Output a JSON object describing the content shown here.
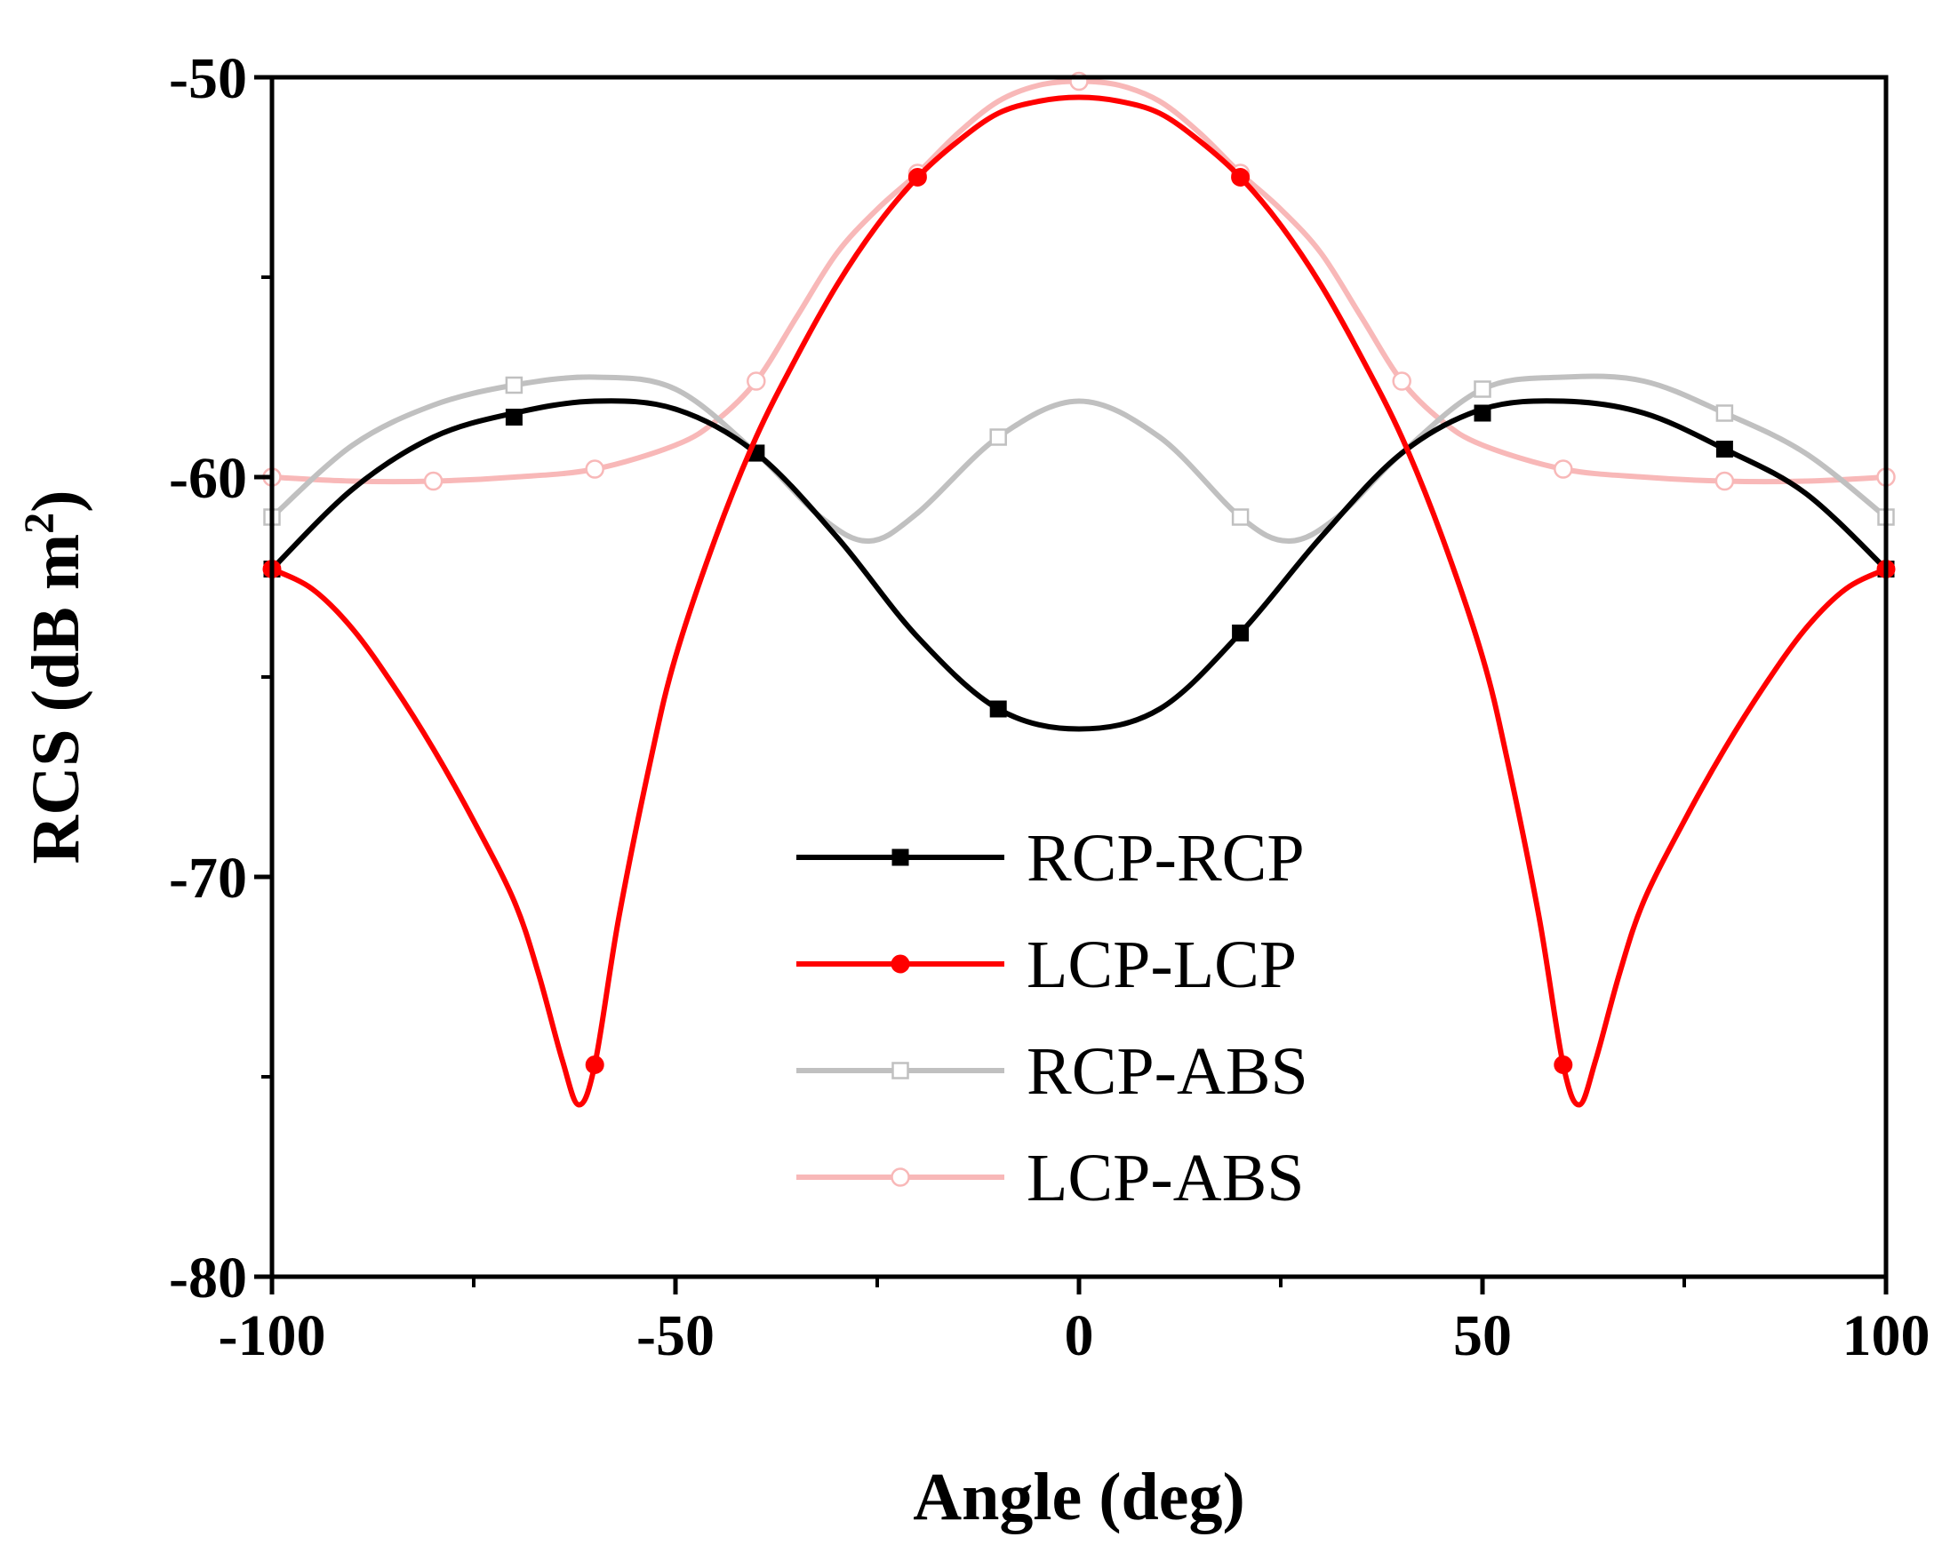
{
  "chart_data": {
    "type": "line",
    "xlabel": "Angle (deg)",
    "ylabel": "RCS (dB m",
    "ylabel_sup": "2",
    "ylabel_close": ")",
    "xlim": [
      -100,
      100
    ],
    "ylim": [
      -80,
      -50
    ],
    "x_ticks": [
      -100,
      -50,
      0,
      50,
      100
    ],
    "y_ticks": [
      -80,
      -70,
      -60,
      -50
    ],
    "x_minor_ticks": [
      -75,
      -25,
      25,
      75
    ],
    "y_minor_ticks": [
      -75,
      -65,
      -55
    ],
    "grid": false,
    "legend_position": "bottom-center",
    "series": [
      {
        "name": "RCP-RCP",
        "color": "#000000",
        "marker": "square-filled",
        "markers": [
          [
            -100,
            -62.3
          ],
          [
            -70,
            -58.5
          ],
          [
            -40,
            -59.4
          ],
          [
            -10,
            -65.8
          ],
          [
            20,
            -63.9
          ],
          [
            50,
            -58.4
          ],
          [
            80,
            -59.3
          ],
          [
            100,
            -62.3
          ]
        ],
        "curve": [
          [
            -100,
            -62.3
          ],
          [
            -90,
            -60.3
          ],
          [
            -80,
            -59.0
          ],
          [
            -70,
            -58.4
          ],
          [
            -60,
            -58.1
          ],
          [
            -50,
            -58.3
          ],
          [
            -40,
            -59.4
          ],
          [
            -30,
            -61.5
          ],
          [
            -20,
            -64.0
          ],
          [
            -10,
            -65.8
          ],
          [
            0,
            -66.3
          ],
          [
            10,
            -65.8
          ],
          [
            20,
            -63.9
          ],
          [
            30,
            -61.5
          ],
          [
            40,
            -59.4
          ],
          [
            50,
            -58.3
          ],
          [
            60,
            -58.1
          ],
          [
            70,
            -58.4
          ],
          [
            80,
            -59.3
          ],
          [
            90,
            -60.4
          ],
          [
            100,
            -62.3
          ]
        ]
      },
      {
        "name": "LCP-LCP",
        "color": "#ff0000",
        "marker": "circle-filled",
        "markers": [
          [
            -100,
            -62.3
          ],
          [
            -60,
            -74.7
          ],
          [
            -20,
            -52.5
          ],
          [
            20,
            -52.5
          ],
          [
            60,
            -74.7
          ],
          [
            100,
            -62.3
          ]
        ],
        "curve": [
          [
            -100,
            -62.3
          ],
          [
            -95,
            -62.8
          ],
          [
            -90,
            -63.8
          ],
          [
            -85,
            -65.2
          ],
          [
            -80,
            -66.8
          ],
          [
            -75,
            -68.6
          ],
          [
            -70,
            -70.6
          ],
          [
            -67,
            -72.4
          ],
          [
            -64,
            -74.6
          ],
          [
            -62,
            -75.7
          ],
          [
            -60,
            -74.7
          ],
          [
            -57,
            -71.0
          ],
          [
            -53,
            -67.0
          ],
          [
            -50,
            -64.5
          ],
          [
            -45,
            -61.5
          ],
          [
            -40,
            -59.0
          ],
          [
            -35,
            -57.0
          ],
          [
            -30,
            -55.2
          ],
          [
            -25,
            -53.7
          ],
          [
            -20,
            -52.5
          ],
          [
            -15,
            -51.6
          ],
          [
            -10,
            -50.9
          ],
          [
            -5,
            -50.6
          ],
          [
            0,
            -50.5
          ],
          [
            5,
            -50.6
          ],
          [
            10,
            -50.9
          ],
          [
            15,
            -51.6
          ],
          [
            20,
            -52.5
          ],
          [
            25,
            -53.7
          ],
          [
            30,
            -55.2
          ],
          [
            35,
            -57.0
          ],
          [
            40,
            -59.0
          ],
          [
            45,
            -61.5
          ],
          [
            50,
            -64.5
          ],
          [
            53,
            -67.0
          ],
          [
            57,
            -71.0
          ],
          [
            60,
            -74.7
          ],
          [
            62,
            -75.7
          ],
          [
            64,
            -74.6
          ],
          [
            67,
            -72.4
          ],
          [
            70,
            -70.6
          ],
          [
            75,
            -68.6
          ],
          [
            80,
            -66.8
          ],
          [
            85,
            -65.2
          ],
          [
            90,
            -63.8
          ],
          [
            95,
            -62.8
          ],
          [
            100,
            -62.3
          ]
        ]
      },
      {
        "name": "RCP-ABS",
        "color": "#c0c0c0",
        "marker": "square-open",
        "markers": [
          [
            -100,
            -61.0
          ],
          [
            -70,
            -57.7
          ],
          [
            -40,
            -59.4
          ],
          [
            -10,
            -59.0
          ],
          [
            20,
            -61.0
          ],
          [
            50,
            -57.8
          ],
          [
            80,
            -58.4
          ],
          [
            100,
            -61.0
          ]
        ],
        "curve": [
          [
            -100,
            -61.0
          ],
          [
            -90,
            -59.2
          ],
          [
            -80,
            -58.2
          ],
          [
            -70,
            -57.7
          ],
          [
            -60,
            -57.5
          ],
          [
            -50,
            -57.8
          ],
          [
            -40,
            -59.4
          ],
          [
            -32,
            -61.0
          ],
          [
            -26,
            -61.6
          ],
          [
            -20,
            -60.9
          ],
          [
            -10,
            -59.0
          ],
          [
            0,
            -58.1
          ],
          [
            10,
            -59.0
          ],
          [
            20,
            -61.0
          ],
          [
            26,
            -61.6
          ],
          [
            32,
            -61.0
          ],
          [
            40,
            -59.4
          ],
          [
            50,
            -57.8
          ],
          [
            60,
            -57.5
          ],
          [
            70,
            -57.6
          ],
          [
            80,
            -58.4
          ],
          [
            90,
            -59.4
          ],
          [
            100,
            -61.0
          ]
        ]
      },
      {
        "name": "LCP-ABS",
        "color": "#f8b8b8",
        "marker": "circle-open",
        "markers": [
          [
            -100,
            -60.0
          ],
          [
            -80,
            -60.1
          ],
          [
            -60,
            -59.8
          ],
          [
            -40,
            -57.6
          ],
          [
            -20,
            -52.4
          ],
          [
            0,
            -50.1
          ],
          [
            20,
            -52.4
          ],
          [
            40,
            -57.6
          ],
          [
            60,
            -59.8
          ],
          [
            80,
            -60.1
          ],
          [
            100,
            -60.0
          ]
        ],
        "curve": [
          [
            -100,
            -60.0
          ],
          [
            -90,
            -60.1
          ],
          [
            -80,
            -60.1
          ],
          [
            -70,
            -60.0
          ],
          [
            -60,
            -59.8
          ],
          [
            -50,
            -59.2
          ],
          [
            -45,
            -58.6
          ],
          [
            -40,
            -57.6
          ],
          [
            -35,
            -56.0
          ],
          [
            -30,
            -54.4
          ],
          [
            -25,
            -53.3
          ],
          [
            -20,
            -52.4
          ],
          [
            -15,
            -51.4
          ],
          [
            -10,
            -50.6
          ],
          [
            -5,
            -50.2
          ],
          [
            0,
            -50.1
          ],
          [
            5,
            -50.2
          ],
          [
            10,
            -50.6
          ],
          [
            15,
            -51.4
          ],
          [
            20,
            -52.4
          ],
          [
            25,
            -53.3
          ],
          [
            30,
            -54.4
          ],
          [
            35,
            -56.0
          ],
          [
            40,
            -57.6
          ],
          [
            45,
            -58.6
          ],
          [
            50,
            -59.2
          ],
          [
            60,
            -59.8
          ],
          [
            70,
            -60.0
          ],
          [
            80,
            -60.1
          ],
          [
            90,
            -60.1
          ],
          [
            100,
            -60.0
          ]
        ]
      }
    ]
  }
}
